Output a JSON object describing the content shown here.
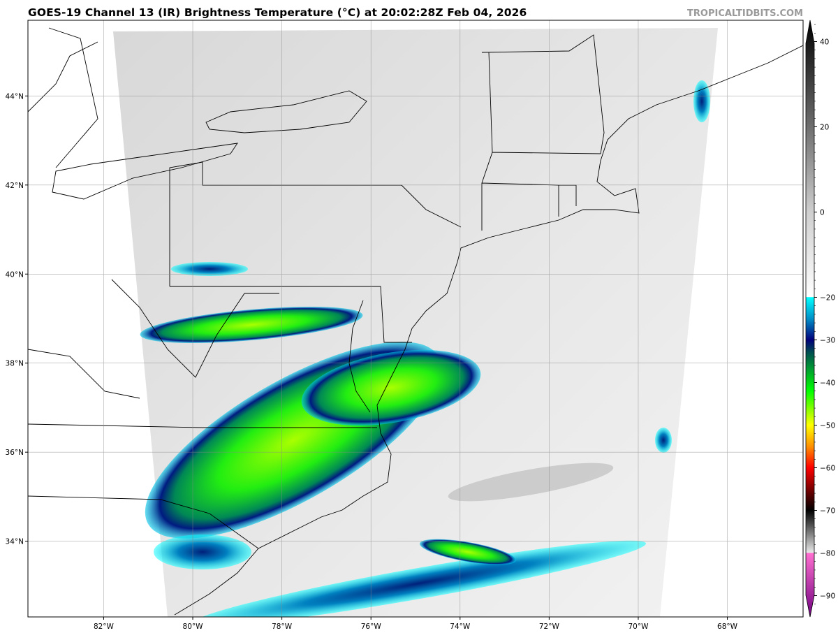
{
  "title": "GOES-19 Channel 13 (IR) Brightness Temperature (°C) at 20:02:28Z Feb 04, 2026",
  "brand": "TROPICALTIDBITS.COM",
  "map": {
    "lon_range": [
      -83.7,
      -66.3
    ],
    "lat_range": [
      32.3,
      45.7
    ],
    "lon_ticks": [
      {
        "value": -82,
        "label": "82°W"
      },
      {
        "value": -80,
        "label": "80°W"
      },
      {
        "value": -78,
        "label": "78°W"
      },
      {
        "value": -76,
        "label": "76°W"
      },
      {
        "value": -74,
        "label": "74°W"
      },
      {
        "value": -72,
        "label": "72°W"
      },
      {
        "value": -70,
        "label": "70°W"
      },
      {
        "value": -68,
        "label": "68°W"
      }
    ],
    "lat_ticks": [
      {
        "value": 44,
        "label": "44°N"
      },
      {
        "value": 42,
        "label": "42°N"
      },
      {
        "value": 40,
        "label": "40°N"
      },
      {
        "value": 38,
        "label": "38°N"
      },
      {
        "value": 36,
        "label": "36°N"
      },
      {
        "value": 34,
        "label": "34°N"
      }
    ],
    "gridlines": true
  },
  "colorbar": {
    "range": [
      -95,
      45
    ],
    "ticks": [
      {
        "value": 40,
        "label": "40"
      },
      {
        "value": 20,
        "label": "20"
      },
      {
        "value": 0,
        "label": "0"
      },
      {
        "value": -20,
        "label": "−20"
      },
      {
        "value": -30,
        "label": "−30"
      },
      {
        "value": -40,
        "label": "−40"
      },
      {
        "value": -50,
        "label": "−50"
      },
      {
        "value": -60,
        "label": "−60"
      },
      {
        "value": -70,
        "label": "−70"
      },
      {
        "value": -80,
        "label": "−80"
      },
      {
        "value": -90,
        "label": "−90"
      }
    ],
    "stops": [
      {
        "value": 45,
        "color": "#000000"
      },
      {
        "value": 20,
        "color": "#6e6e6e"
      },
      {
        "value": 0,
        "color": "#cfcfcf"
      },
      {
        "value": -19.9,
        "color": "#ffffff"
      },
      {
        "value": -20,
        "color": "#00ffff"
      },
      {
        "value": -25,
        "color": "#0090c8"
      },
      {
        "value": -30,
        "color": "#00007a"
      },
      {
        "value": -33,
        "color": "#005050"
      },
      {
        "value": -37,
        "color": "#00a030"
      },
      {
        "value": -42,
        "color": "#00ff00"
      },
      {
        "value": -50,
        "color": "#ffff00"
      },
      {
        "value": -55,
        "color": "#ff9000"
      },
      {
        "value": -60,
        "color": "#ff0000"
      },
      {
        "value": -66,
        "color": "#600000"
      },
      {
        "value": -70,
        "color": "#000000"
      },
      {
        "value": -79.9,
        "color": "#e8e8e8"
      },
      {
        "value": -80,
        "color": "#ff70d0"
      },
      {
        "value": -95,
        "color": "#700080"
      }
    ]
  }
}
